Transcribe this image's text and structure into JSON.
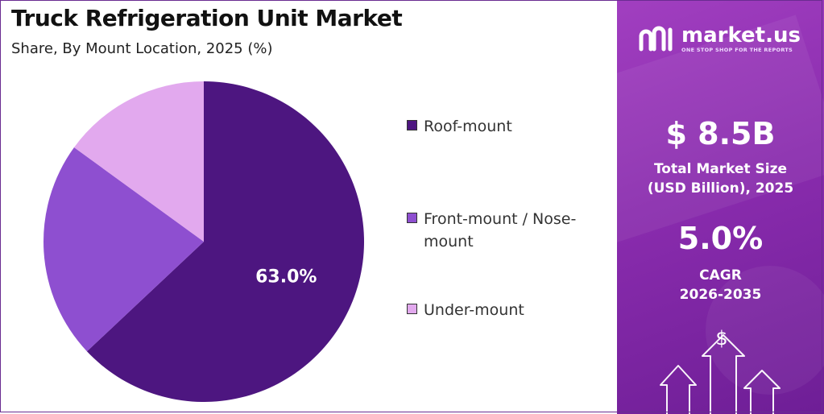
{
  "title": "Truck Refrigeration Unit Market",
  "subtitle": "Share, By Mount Location, 2025 (%)",
  "chart_data": {
    "type": "pie",
    "title": "Truck Refrigeration Unit Market",
    "subtitle": "Share, By Mount Location, 2025 (%)",
    "categories": [
      "Roof-mount",
      "Front-mount / Nose-mount",
      "Under-mount"
    ],
    "values": [
      63.0,
      22.0,
      15.0
    ],
    "colors": [
      "#4d1680",
      "#8e4fd0",
      "#e2a9ee"
    ],
    "data_labels": [
      "63.0%",
      "",
      ""
    ],
    "legend_position": "right"
  },
  "legend": {
    "items": [
      {
        "label": "Roof-mount"
      },
      {
        "label_line1": "Front-mount / Nose-",
        "label_line2": "mount"
      },
      {
        "label": "Under-mount"
      }
    ]
  },
  "brand": {
    "name": "market.us",
    "tagline": "ONE STOP SHOP FOR THE REPORTS",
    "icon": "market-us-logo-icon"
  },
  "stats": {
    "market_size_value": "$ 8.5B",
    "market_size_label_line1": "Total Market Size",
    "market_size_label_line2": "(USD Billion), 2025",
    "cagr_value": "5.0%",
    "cagr_label_line1": "CAGR",
    "cagr_label_line2": "2026-2035"
  },
  "decor": {
    "icon": "dollar-growth-arrows-icon",
    "symbol": "$"
  },
  "theme": {
    "panel_color": "#8a2cae",
    "border_color": "#6a2c91"
  }
}
